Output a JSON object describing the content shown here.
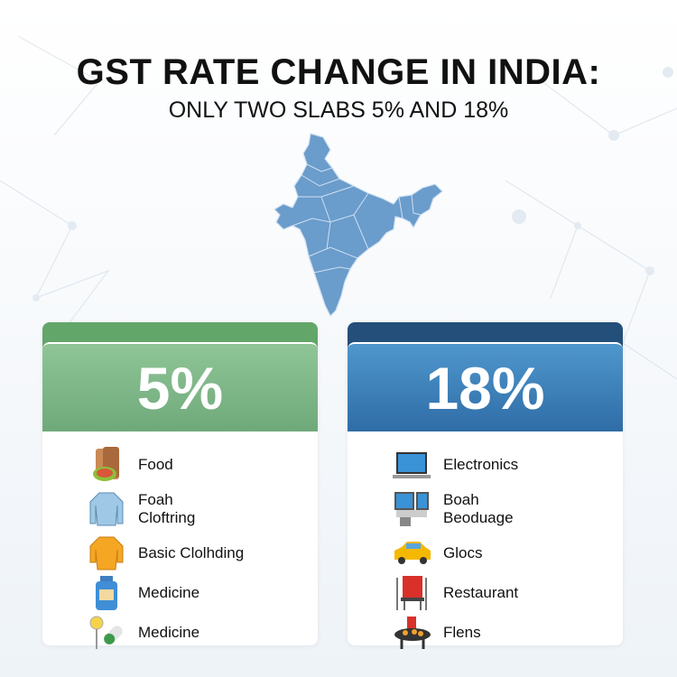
{
  "title": "GST RATE CHANGE IN INDIA:",
  "subtitle": "ONLY TWO SLABS 5% AND 18%",
  "colors": {
    "green_band": "#62a66a",
    "green_head": "#7fb888",
    "blue_band": "#244f7a",
    "blue_head": "#3f82bb",
    "map": "#6a9ccc"
  },
  "slabs": [
    {
      "rate": "5%",
      "items": [
        {
          "icon": "food-bag-icon",
          "label": "Food"
        },
        {
          "icon": "shirt-icon",
          "label": "Foah Cloftring"
        },
        {
          "icon": "tunic-icon",
          "label": "Basic Clolhding"
        },
        {
          "icon": "medicine-bottle-icon",
          "label": "Medicine"
        },
        {
          "icon": "pill-capsule-icon",
          "label": "Medicine"
        }
      ]
    },
    {
      "rate": "18%",
      "items": [
        {
          "icon": "laptop-icon",
          "label": "Electronics"
        },
        {
          "icon": "appliance-icon",
          "label": "Boah Beoduage"
        },
        {
          "icon": "car-icon",
          "label": "Glocs"
        },
        {
          "icon": "restaurant-icon",
          "label": "Restaurant"
        },
        {
          "icon": "grill-table-icon",
          "label": "Flens"
        }
      ]
    }
  ]
}
